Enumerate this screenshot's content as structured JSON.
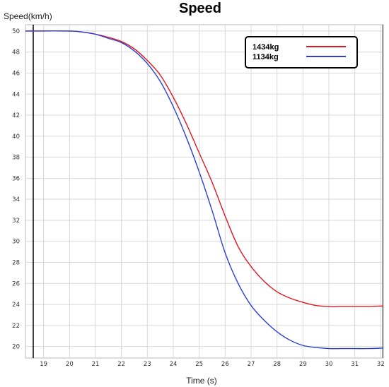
{
  "chart_data": {
    "type": "line",
    "title": "Speed",
    "xlabel": "Time (s)",
    "ylabel": "Speed(km/h)",
    "xlim": [
      18.3,
      32.1
    ],
    "ylim": [
      18.9,
      50.6
    ],
    "xticks": [
      19,
      20,
      21,
      22,
      23,
      24,
      25,
      26,
      27,
      28,
      29,
      30,
      31,
      32
    ],
    "yticks": [
      20,
      22,
      24,
      26,
      28,
      30,
      32,
      34,
      36,
      38,
      40,
      42,
      44,
      46,
      48,
      50
    ],
    "grid": true,
    "legend_position": "top-right",
    "series": [
      {
        "name": "1434kg",
        "color": "#e0161f",
        "points": [
          [
            18.3,
            50
          ],
          [
            20,
            50
          ],
          [
            20.5,
            49.9
          ],
          [
            21,
            49.7
          ],
          [
            21.5,
            49.4
          ],
          [
            22,
            49.0
          ],
          [
            22.5,
            48.3
          ],
          [
            23,
            47.2
          ],
          [
            23.5,
            45.8
          ],
          [
            24,
            43.7
          ],
          [
            24.5,
            41.2
          ],
          [
            25,
            38.4
          ],
          [
            25.5,
            35.6
          ],
          [
            26,
            32.4
          ],
          [
            26.5,
            29.5
          ],
          [
            27,
            27.6
          ],
          [
            27.5,
            26.2
          ],
          [
            28,
            25.2
          ],
          [
            28.5,
            24.6
          ],
          [
            29,
            24.2
          ],
          [
            29.5,
            23.9
          ],
          [
            30,
            23.8
          ],
          [
            30.5,
            23.8
          ],
          [
            31,
            23.8
          ],
          [
            31.5,
            23.8
          ],
          [
            32.1,
            23.85
          ]
        ]
      },
      {
        "name": "1134kg",
        "color": "#2b3fd6",
        "points": [
          [
            18.3,
            50
          ],
          [
            20,
            50
          ],
          [
            20.5,
            49.9
          ],
          [
            21,
            49.7
          ],
          [
            21.5,
            49.3
          ],
          [
            22,
            48.9
          ],
          [
            22.5,
            48.1
          ],
          [
            23,
            46.9
          ],
          [
            23.5,
            45.2
          ],
          [
            24,
            42.8
          ],
          [
            24.5,
            39.9
          ],
          [
            25,
            36.6
          ],
          [
            25.5,
            32.9
          ],
          [
            26,
            28.9
          ],
          [
            26.5,
            26.0
          ],
          [
            27,
            23.9
          ],
          [
            27.5,
            22.5
          ],
          [
            28,
            21.4
          ],
          [
            28.5,
            20.6
          ],
          [
            29,
            20.1
          ],
          [
            29.5,
            19.9
          ],
          [
            30,
            19.8
          ],
          [
            30.5,
            19.8
          ],
          [
            31,
            19.8
          ],
          [
            31.5,
            19.8
          ],
          [
            32.1,
            19.85
          ]
        ]
      }
    ]
  }
}
